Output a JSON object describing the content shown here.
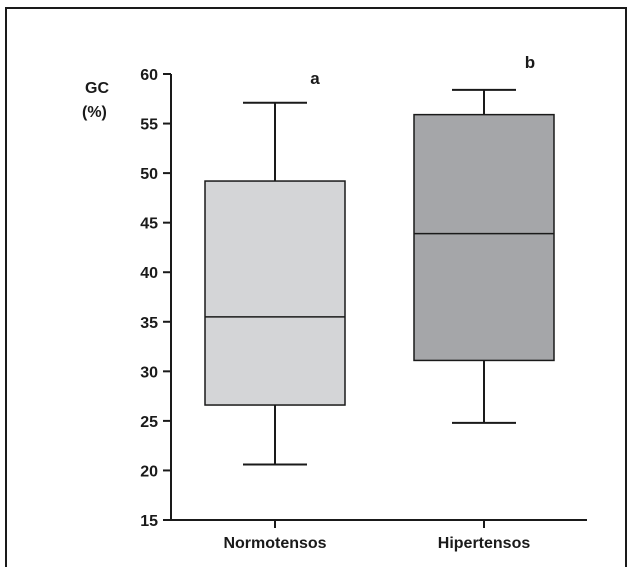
{
  "chart_data": {
    "type": "boxplot",
    "ylabel_line1": "GC",
    "ylabel_line2": "(%)",
    "ylim": [
      15,
      60
    ],
    "yticks": [
      15,
      20,
      25,
      30,
      35,
      40,
      45,
      50,
      55,
      60
    ],
    "categories": [
      "Normotensos",
      "Hipertensos"
    ],
    "boxes": [
      {
        "category": "Normotensos",
        "min": 20.6,
        "q1": 26.6,
        "median": 35.5,
        "q3": 49.2,
        "max": 57.1,
        "color": "#d4d5d7",
        "annotation": "a"
      },
      {
        "category": "Hipertensos",
        "min": 24.8,
        "q1": 31.1,
        "median": 43.9,
        "q3": 55.9,
        "max": 58.4,
        "color": "#a5a6a9",
        "annotation": "b"
      }
    ],
    "grid": false
  }
}
